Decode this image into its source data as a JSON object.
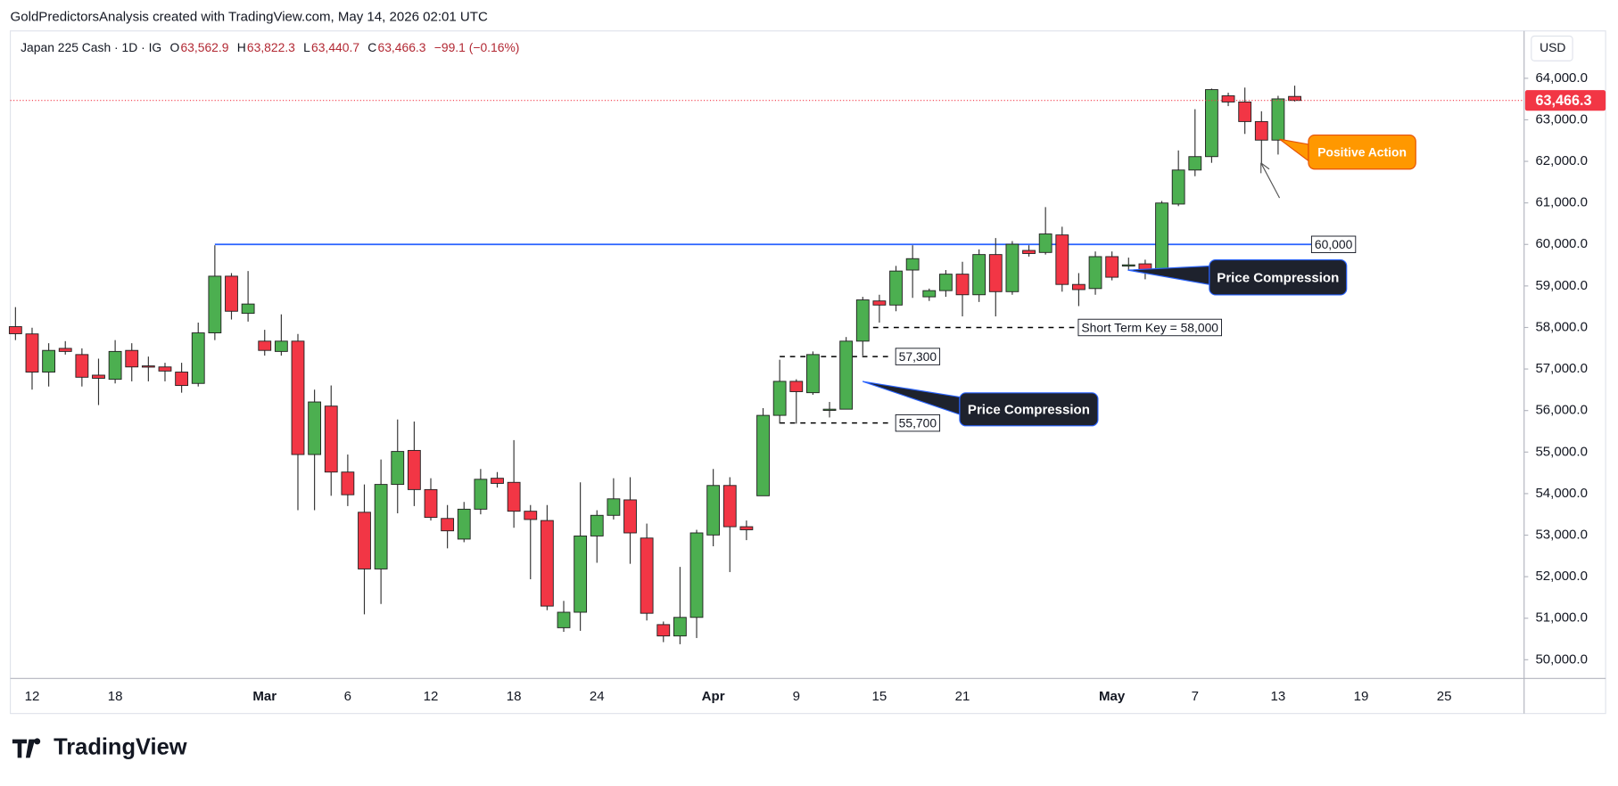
{
  "header": {
    "watermark": "GoldPredictorsAnalysis created with TradingView.com, May 14, 2026 02:01 UTC",
    "symbol": "Japan 225 Cash · 1D · IG",
    "ohlc": [
      {
        "key": "O",
        "value": "63,562.9"
      },
      {
        "key": "H",
        "value": "63,822.3"
      },
      {
        "key": "L",
        "value": "63,440.7"
      },
      {
        "key": "C",
        "value": "63,466.3"
      }
    ],
    "change": "−99.1 (−0.16%)",
    "currency": "USD"
  },
  "chart_data": {
    "type": "candlestick",
    "categories": [
      null,
      "12",
      null,
      null,
      null,
      null,
      "18",
      null,
      null,
      null,
      null,
      null,
      null,
      null,
      null,
      "Mar",
      null,
      null,
      null,
      null,
      "6",
      null,
      null,
      null,
      null,
      "12",
      null,
      null,
      null,
      null,
      "18",
      null,
      null,
      null,
      null,
      "24",
      null,
      null,
      null,
      null,
      null,
      null,
      "Apr",
      null,
      null,
      null,
      null,
      "9",
      null,
      null,
      null,
      null,
      "15",
      null,
      null,
      null,
      null,
      "21",
      null,
      null,
      null,
      null,
      null,
      null,
      null,
      null,
      "May",
      null,
      null,
      null,
      null,
      "7",
      null,
      null,
      null,
      null,
      "13",
      null,
      null,
      null,
      null,
      "19",
      null,
      null,
      null,
      null,
      "25"
    ],
    "open": [
      58020,
      57845,
      56926,
      57497,
      57348,
      56852,
      56752,
      57448,
      57075,
      57050,
      56926,
      56653,
      57870,
      59235,
      58340,
      57671,
      57423,
      57671,
      54941,
      56107,
      54519,
      53551,
      52186,
      54221,
      55040,
      54097,
      53402,
      52905,
      53625,
      54370,
      54271,
      53576,
      53352,
      50771,
      51144,
      52980,
      53477,
      53849,
      52930,
      50846,
      50573,
      51020,
      53004,
      54196,
      53203,
      53948,
      55884,
      56703,
      56430,
      56033,
      56033,
      57671,
      58639,
      58540,
      59383,
      58738,
      58887,
      59284,
      58788,
      59756,
      58862,
      59855,
      59806,
      60228,
      59036,
      58937,
      59706,
      59508,
      59532,
      59359,
      60972,
      61791,
      62114,
      63578,
      63429,
      62958,
      62511,
      63562.9,
      null,
      null,
      null,
      null,
      null,
      null,
      null,
      null,
      null
    ],
    "high": [
      58490,
      57994,
      57621,
      57671,
      57497,
      57249,
      57696,
      57621,
      57299,
      57150,
      57150,
      58118,
      59980,
      59309,
      59359,
      57944,
      58316,
      57845,
      56504,
      56604,
      54941,
      54221,
      54820,
      55785,
      55735,
      54370,
      53725,
      53799,
      54593,
      54519,
      55288,
      53725,
      53725,
      51417,
      54271,
      53600,
      54370,
      54395,
      53278,
      50920,
      52235,
      53129,
      54593,
      54395,
      53352,
      56058,
      57224,
      56753,
      57423,
      56207,
      57770,
      58738,
      58788,
      59483,
      59980,
      58937,
      59383,
      59582,
      59880,
      60153,
      60079,
      59980,
      60898,
      60426,
      59309,
      59830,
      59830,
      59682,
      59632,
      61046,
      62263,
      63255,
      63752,
      63653,
      63776,
      63206,
      63578,
      63822.3,
      null,
      null,
      null,
      null,
      null,
      null,
      null,
      null,
      null
    ],
    "low": [
      57696,
      56504,
      56579,
      57348,
      56579,
      56132,
      56653,
      56703,
      56703,
      56703,
      56430,
      56579,
      57696,
      58192,
      58142,
      57323,
      57323,
      53600,
      53600,
      53948,
      53700,
      51094,
      51343,
      53526,
      53700,
      53352,
      52682,
      52830,
      53501,
      54146,
      53178,
      51938,
      51193,
      50672,
      50697,
      52335,
      53377,
      52310,
      50945,
      50424,
      50374,
      50523,
      52732,
      52111,
      52880,
      53948,
      55685,
      55685,
      56380,
      55834,
      56033,
      57323,
      58118,
      58391,
      58713,
      58639,
      58738,
      58267,
      58614,
      58267,
      58788,
      59707,
      59756,
      58862,
      58515,
      58788,
      59135,
      59384,
      59160,
      59285,
      60922,
      61642,
      61965,
      63330,
      62660,
      61915,
      62164,
      63440.7,
      null,
      null,
      null,
      null,
      null,
      null,
      null,
      null,
      null
    ],
    "close": [
      57850,
      56926,
      57448,
      57423,
      56802,
      56777,
      57423,
      57050,
      57050,
      56951,
      56603,
      57870,
      59235,
      58391,
      58565,
      57448,
      57671,
      54941,
      56207,
      54519,
      53973,
      52186,
      54221,
      55015,
      54097,
      53427,
      53104,
      53625,
      54345,
      54246,
      53576,
      53377,
      51292,
      51144,
      52980,
      53477,
      53874,
      53054,
      51119,
      50573,
      51020,
      53054,
      54196,
      53203,
      53129,
      55884,
      56703,
      56455,
      57348,
      56033,
      57671,
      58664,
      58540,
      59359,
      59657,
      58887,
      59284,
      58788,
      59756,
      58862,
      60004,
      59781,
      60252,
      59036,
      58912,
      59706,
      59210,
      59508,
      59359,
      60997,
      61791,
      62114,
      63727,
      63429,
      62958,
      62511,
      63504,
      63466.3,
      null,
      null,
      null,
      null,
      null,
      null,
      null,
      null,
      null
    ],
    "up_color": "#4caf50",
    "down_color": "#f23645",
    "last_label": "63,466.3",
    "ylim": [
      49550,
      65140
    ],
    "yticks": [
      {
        "value": 50000,
        "label": "50,000.0"
      },
      {
        "value": 51000,
        "label": "51,000.0"
      },
      {
        "value": 52000,
        "label": "52,000.0"
      },
      {
        "value": 53000,
        "label": "53,000.0"
      },
      {
        "value": 54000,
        "label": "54,000.0"
      },
      {
        "value": 55000,
        "label": "55,000.0"
      },
      {
        "value": 56000,
        "label": "56,000.0"
      },
      {
        "value": 57000,
        "label": "57,000.0"
      },
      {
        "value": 58000,
        "label": "58,000.0"
      },
      {
        "value": 59000,
        "label": "59,000.0"
      },
      {
        "value": 60000,
        "label": "60,000.0"
      },
      {
        "value": 61000,
        "label": "61,000.0"
      },
      {
        "value": 62000,
        "label": "62,000.0"
      },
      {
        "value": 63000,
        "label": "63,000.0"
      },
      {
        "value": 64000,
        "label": "64,000.0"
      }
    ],
    "levels": [
      {
        "label": "60,000",
        "value": 60000,
        "color": "#2962ff"
      },
      {
        "label": "Short Term Key = 58,000",
        "value": 58000,
        "color": "#000000"
      },
      {
        "label": "57,300",
        "value": 57300,
        "color": "#000000"
      },
      {
        "label": "55,700",
        "value": 55700,
        "color": "#000000"
      }
    ],
    "callouts": [
      "Price Compression",
      "Price Compression",
      "Positive Action"
    ]
  },
  "footer": {
    "logo": "TradingView"
  }
}
